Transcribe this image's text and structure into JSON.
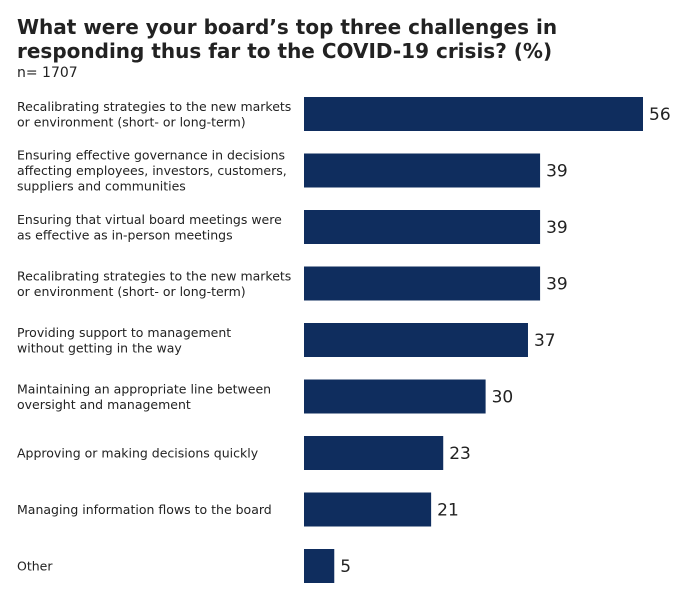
{
  "header": {
    "title": "What were your board’s top three challenges in responding thus far to the COVID-19 crisis? (%)",
    "subtitle": "n= 1707"
  },
  "colors": {
    "bar": "#0f2d5e",
    "text": "#222222"
  },
  "chart_data": {
    "type": "bar",
    "orientation": "horizontal",
    "title": "What were your board’s top three challenges in responding thus far to the COVID-19 crisis? (%)",
    "subtitle": "n= 1707",
    "categories": [
      [
        "Recalibrating strategies to the new markets",
        "or environment (short- or long-term)"
      ],
      [
        "Ensuring effective governance in decisions",
        "affecting employees, investors, customers,",
        "suppliers and communities"
      ],
      [
        "Ensuring that virtual board meetings were",
        "as effective as in-person meetings"
      ],
      [
        "Recalibrating strategies to the new markets",
        "or environment (short- or long-term)"
      ],
      [
        "Providing support to management",
        "without getting in the way"
      ],
      [
        "Maintaining an appropriate line between",
        "oversight and management"
      ],
      [
        "Approving or making decisions quickly"
      ],
      [
        "Managing information flows to the board"
      ],
      [
        "Other"
      ]
    ],
    "values": [
      56,
      39,
      39,
      39,
      37,
      30,
      23,
      21,
      5
    ],
    "value_labels": [
      "56",
      "39",
      "39",
      "39",
      "37",
      "30",
      "23",
      "21",
      "5"
    ],
    "xlim": [
      0,
      56
    ],
    "grid": false,
    "legend": "none"
  }
}
